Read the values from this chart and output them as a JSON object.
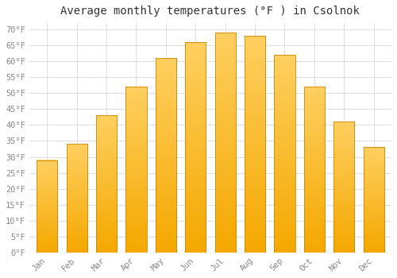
{
  "title": "Average monthly temperatures (°F ) in Csolnok",
  "months": [
    "Jan",
    "Feb",
    "Mar",
    "Apr",
    "May",
    "Jun",
    "Jul",
    "Aug",
    "Sep",
    "Oct",
    "Nov",
    "Dec"
  ],
  "values": [
    29,
    34,
    43,
    52,
    61,
    66,
    69,
    68,
    62,
    52,
    41,
    33
  ],
  "bar_color_top": "#FFC020",
  "bar_color_bottom": "#FFAA00",
  "bar_edge_color": "#CC8800",
  "background_color": "#FFFFFF",
  "grid_color": "#DDDDDD",
  "text_color": "#888888",
  "title_color": "#333333",
  "ylim": [
    0,
    72
  ],
  "yticks": [
    0,
    5,
    10,
    15,
    20,
    25,
    30,
    35,
    40,
    45,
    50,
    55,
    60,
    65,
    70
  ],
  "title_fontsize": 10,
  "tick_fontsize": 7.5,
  "bar_width": 0.7
}
